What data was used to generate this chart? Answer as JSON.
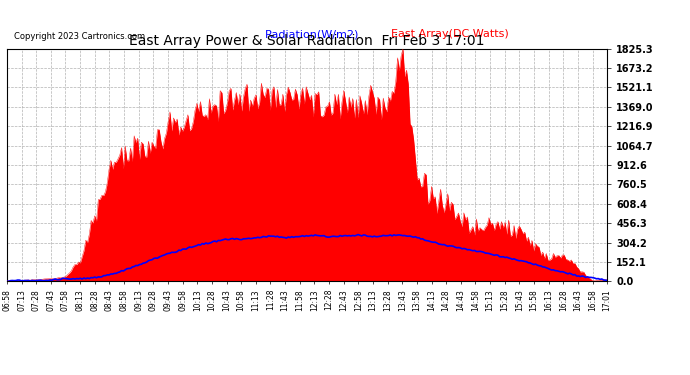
{
  "title": "East Array Power & Solar Radiation  Fri Feb 3 17:01",
  "copyright": "Copyright 2023 Cartronics.com",
  "legend_radiation": "Radiation(W/m2)",
  "legend_east": "East Array(DC Watts)",
  "background_color": "#ffffff",
  "radiation_color": "#0000ff",
  "east_array_color": "#ff0000",
  "grid_color": "#aaaaaa",
  "ymin": 0.0,
  "ymax": 1825.3,
  "yticks": [
    0.0,
    152.1,
    304.2,
    456.3,
    608.4,
    760.5,
    912.6,
    1064.7,
    1216.9,
    1369.0,
    1521.1,
    1673.2,
    1825.3
  ],
  "time_labels": [
    "06:58",
    "07:13",
    "07:28",
    "07:43",
    "07:58",
    "08:13",
    "08:28",
    "08:43",
    "08:58",
    "09:13",
    "09:28",
    "09:43",
    "09:58",
    "10:13",
    "10:28",
    "10:43",
    "10:58",
    "11:13",
    "11:28",
    "11:43",
    "11:58",
    "12:13",
    "12:28",
    "12:43",
    "12:58",
    "13:13",
    "13:28",
    "13:43",
    "13:58",
    "14:13",
    "14:28",
    "14:43",
    "14:58",
    "15:13",
    "15:28",
    "15:43",
    "15:58",
    "16:13",
    "16:28",
    "16:43",
    "16:58",
    "17:01"
  ],
  "east_array_values": [
    5,
    8,
    12,
    20,
    35,
    200,
    550,
    800,
    980,
    1050,
    1100,
    1150,
    1200,
    1350,
    1400,
    1430,
    1440,
    1450,
    1460,
    1450,
    1440,
    1430,
    1420,
    1410,
    1400,
    1390,
    1380,
    1825,
    900,
    700,
    600,
    520,
    470,
    430,
    390,
    340,
    290,
    240,
    180,
    110,
    50,
    15
  ],
  "radiation_values": [
    2,
    3,
    5,
    8,
    12,
    18,
    30,
    55,
    90,
    130,
    170,
    210,
    250,
    290,
    310,
    325,
    335,
    342,
    348,
    350,
    352,
    353,
    354,
    355,
    356,
    357,
    358,
    360,
    340,
    310,
    285,
    260,
    240,
    215,
    190,
    160,
    130,
    100,
    70,
    45,
    25,
    10
  ],
  "east_noise_seed": 42,
  "rad_noise_seed": 7
}
